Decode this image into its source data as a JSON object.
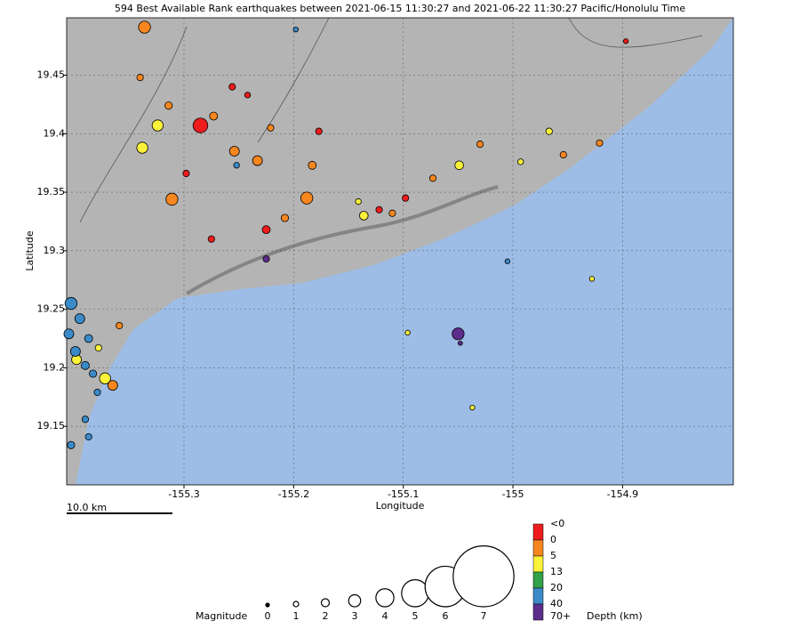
{
  "chart_data": {
    "type": "scatter",
    "title": "594 Best Available Rank earthquakes between 2021-06-15 11:30:27 and 2021-06-22 11:30:27 Pacific/Honolulu Time",
    "xlabel": "Longitude",
    "ylabel": "Latitude",
    "xlim": [
      -155.407,
      -154.799
    ],
    "ylim": [
      19.1,
      19.499
    ],
    "xticks": [
      -155.3,
      -155.2,
      -155.1,
      -155,
      -154.9
    ],
    "yticks": [
      19.15,
      19.2,
      19.25,
      19.3,
      19.35,
      19.4,
      19.45
    ],
    "grid": true,
    "series": [
      {
        "color": "#ee1c1c",
        "x": [
          -155.285,
          -155.256,
          -155.275,
          -155.225,
          -155.177,
          -155.098,
          -155.122,
          -154.897,
          -155.298,
          -155.242
        ],
        "values": [
          19.407,
          19.44,
          19.31,
          19.318,
          19.402,
          19.345,
          19.335,
          19.479,
          19.366,
          19.433
        ],
        "sizes": [
          3.5,
          1.5,
          1.5,
          2,
          1.5,
          1.5,
          1.5,
          0.8,
          1.5,
          1.2
        ]
      },
      {
        "color": "#f7861e",
        "x": [
          -155.336,
          -155.311,
          -155.188,
          -155.233,
          -155.254,
          -155.183,
          -155.11,
          -155.03,
          -154.954,
          -154.921,
          -155.365,
          -155.359,
          -155.34,
          -155.221,
          -155.073,
          -155.314,
          -155.273,
          -155.208
        ],
        "values": [
          19.491,
          19.344,
          19.345,
          19.377,
          19.385,
          19.373,
          19.332,
          19.391,
          19.382,
          19.392,
          19.185,
          19.236,
          19.448,
          19.405,
          19.362,
          19.424,
          19.415,
          19.328
        ],
        "sizes": [
          3,
          3,
          3,
          2.5,
          2.5,
          2,
          1.5,
          1.5,
          1.5,
          1.5,
          2.5,
          1.5,
          1.5,
          1.5,
          1.5,
          1.8,
          2,
          1.8
        ]
      },
      {
        "color": "#fbf23a",
        "x": [
          -155.338,
          -155.324,
          -155.136,
          -155.049,
          -155.372,
          -154.967,
          -154.993,
          -155.398,
          -155.378,
          -154.928,
          -155.096,
          -155.037,
          -155.141
        ],
        "values": [
          19.388,
          19.407,
          19.33,
          19.373,
          19.191,
          19.402,
          19.376,
          19.207,
          19.217,
          19.276,
          19.23,
          19.166,
          19.342
        ],
        "sizes": [
          2.8,
          2.8,
          2.2,
          2.2,
          2.8,
          1.5,
          1.2,
          2.5,
          1.5,
          0.8,
          0.8,
          0.8,
          1.2
        ]
      },
      {
        "color": "#3b8bc9",
        "x": [
          -155.403,
          -155.405,
          -155.399,
          -155.395,
          -155.387,
          -155.39,
          -155.383,
          -155.403,
          -155.39,
          -155.252,
          -155.005,
          -155.198,
          -155.387,
          -155.379
        ],
        "values": [
          19.255,
          19.229,
          19.214,
          19.242,
          19.225,
          19.202,
          19.195,
          19.134,
          19.156,
          19.373,
          19.291,
          19.489,
          19.141,
          19.179
        ],
        "sizes": [
          3,
          2.5,
          2.5,
          2.5,
          2,
          2,
          1.8,
          1.8,
          1.5,
          1.2,
          0.8,
          0.8,
          1.5,
          1.5
        ]
      },
      {
        "color": "#5c2d8a",
        "x": [
          -155.05,
          -155.225,
          -155.048
        ],
        "values": [
          19.229,
          19.293,
          19.221
        ],
        "sizes": [
          3,
          1.5,
          0.5
        ]
      }
    ],
    "scale_bar": {
      "label": "10.0 km"
    },
    "magnitude_legend": {
      "title": "Magnitude",
      "values": [
        0,
        1,
        2,
        3,
        4,
        5,
        6,
        7
      ]
    },
    "depth_legend": {
      "title": "Depth (km)",
      "labels": [
        "<0",
        "0",
        "5",
        "13",
        "20",
        "40",
        "70+"
      ],
      "colors": [
        "#ee1c1c",
        "#f7861e",
        "#fbf23a",
        "#33a04a",
        "#3b8bc9",
        "#5c2d8a"
      ]
    }
  }
}
